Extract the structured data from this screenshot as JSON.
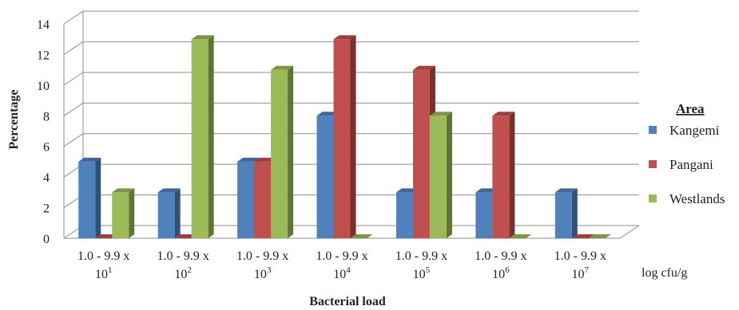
{
  "chart_data": {
    "type": "bar",
    "title": "",
    "xlabel": "Bacterial load",
    "ylabel": "Percentage",
    "x_unit_label": "log cfu/g",
    "ylim": [
      0,
      14
    ],
    "yticks": [
      0,
      2,
      4,
      6,
      8,
      10,
      12,
      14
    ],
    "grid": true,
    "legend_title": "Area",
    "legend_position": "right",
    "categories": [
      {
        "line1": "1.0 - 9.9 x",
        "base": "10",
        "exp": "1"
      },
      {
        "line1": "1.0 - 9.9 x",
        "base": "10",
        "exp": "2"
      },
      {
        "line1": "1.0 - 9.9 x",
        "base": "10",
        "exp": "3"
      },
      {
        "line1": "1.0 - 9.9 x",
        "base": "10",
        "exp": "4"
      },
      {
        "line1": "1.0 - 9.9 x",
        "base": "10",
        "exp": "5"
      },
      {
        "line1": "1.0 - 9.9 x",
        "base": "10",
        "exp": "6"
      },
      {
        "line1": "1.0 - 9.9 x",
        "base": "10",
        "exp": "7"
      }
    ],
    "series": [
      {
        "name": "Kangemi",
        "color": "#4f81bd",
        "values": [
          5,
          3,
          5,
          8,
          3,
          3,
          3
        ]
      },
      {
        "name": "Pangani",
        "color": "#c0504d",
        "values": [
          0,
          0,
          5,
          13,
          11,
          8,
          0
        ]
      },
      {
        "name": "Westlands",
        "color": "#9bbb59",
        "values": [
          3,
          13,
          11,
          0,
          8,
          0,
          0
        ]
      }
    ]
  }
}
